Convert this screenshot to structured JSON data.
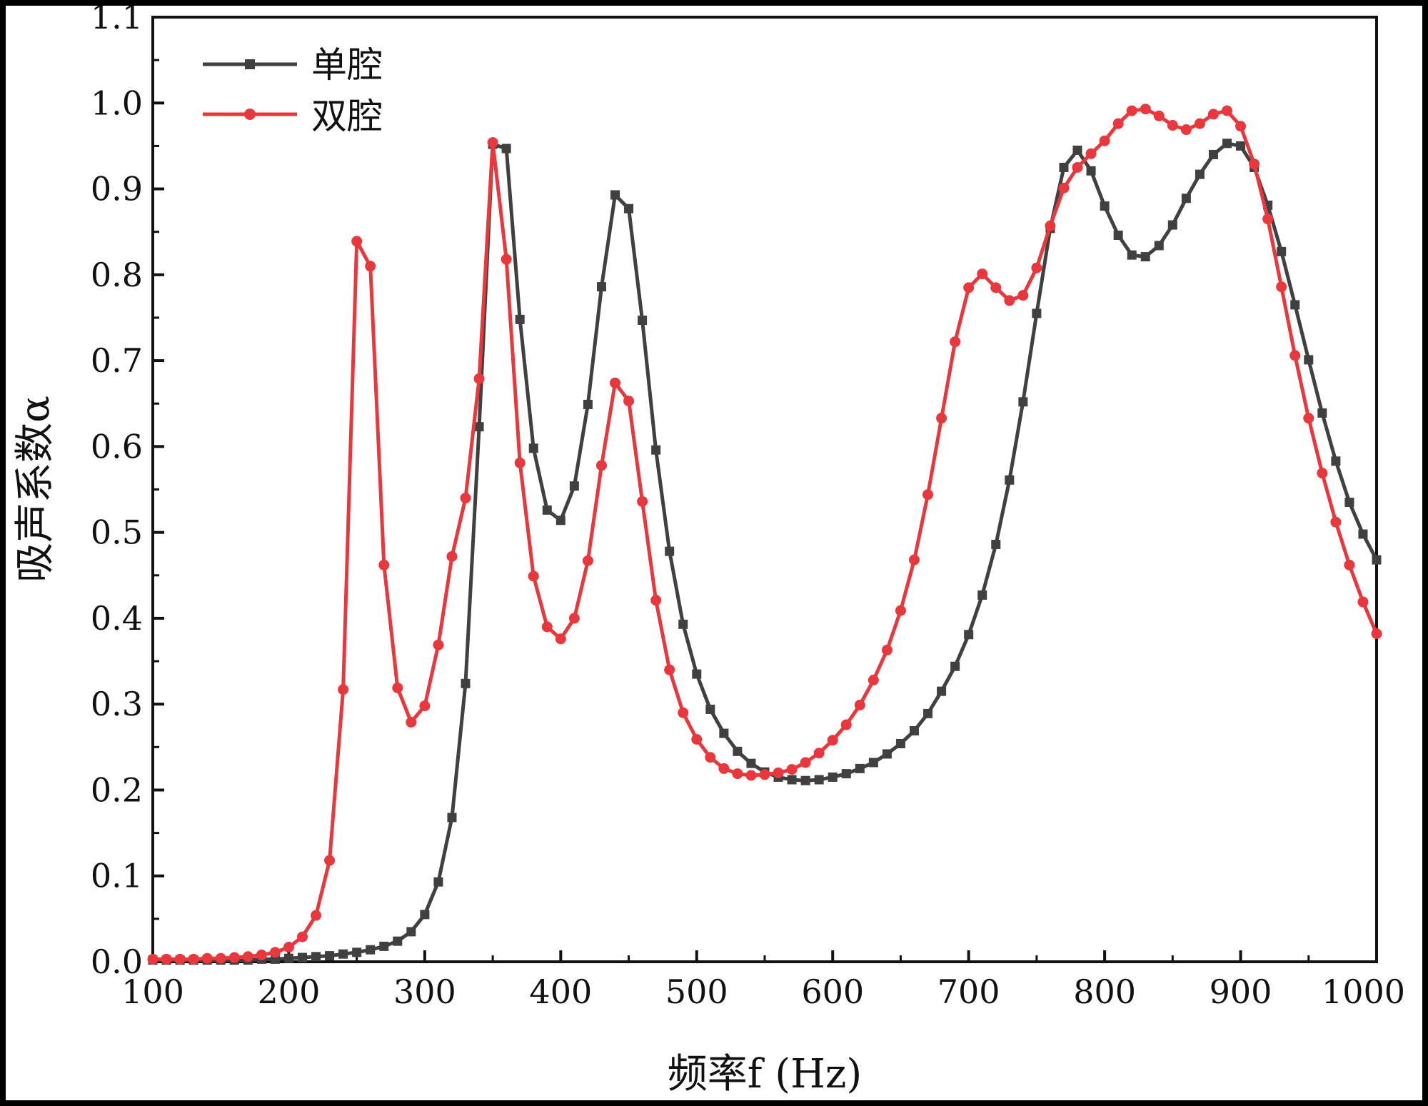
{
  "chart_data": {
    "type": "line",
    "xlabel": "频率f (Hz)",
    "ylabel": "吸声系数α",
    "xlim": [
      100,
      1000
    ],
    "ylim": [
      0.0,
      1.1
    ],
    "x_ticks": [
      "100",
      "200",
      "300",
      "400",
      "500",
      "600",
      "700",
      "800",
      "900",
      "1000"
    ],
    "y_ticks": [
      "0.0",
      "0.1",
      "0.2",
      "0.3",
      "0.4",
      "0.5",
      "0.6",
      "0.7",
      "0.8",
      "0.9",
      "1.0",
      "1.1"
    ],
    "grid": false,
    "legend_position": "top-left",
    "x": [
      100,
      110,
      120,
      130,
      140,
      150,
      160,
      170,
      180,
      190,
      200,
      210,
      220,
      230,
      240,
      250,
      260,
      270,
      280,
      290,
      300,
      310,
      320,
      330,
      340,
      350,
      360,
      370,
      380,
      390,
      400,
      410,
      420,
      430,
      440,
      450,
      460,
      470,
      480,
      490,
      500,
      510,
      520,
      530,
      540,
      550,
      560,
      570,
      580,
      590,
      600,
      610,
      620,
      630,
      640,
      650,
      660,
      670,
      680,
      690,
      700,
      710,
      720,
      730,
      740,
      750,
      760,
      770,
      780,
      790,
      800,
      810,
      820,
      830,
      840,
      850,
      860,
      870,
      880,
      890,
      900,
      910,
      920,
      930,
      940,
      950,
      960,
      970,
      980,
      990,
      1000
    ],
    "series": [
      {
        "name": "单腔",
        "color": "#404040",
        "marker": "square",
        "values": [
          0.002,
          0.002,
          0.002,
          0.002,
          0.002,
          0.002,
          0.002,
          0.002,
          0.003,
          0.003,
          0.004,
          0.005,
          0.006,
          0.007,
          0.009,
          0.011,
          0.014,
          0.018,
          0.024,
          0.035,
          0.055,
          0.093,
          0.168,
          0.324,
          0.623,
          0.952,
          0.947,
          0.748,
          0.598,
          0.526,
          0.514,
          0.554,
          0.649,
          0.786,
          0.893,
          0.877,
          0.747,
          0.596,
          0.478,
          0.393,
          0.335,
          0.294,
          0.266,
          0.245,
          0.231,
          0.221,
          0.215,
          0.212,
          0.211,
          0.212,
          0.215,
          0.219,
          0.225,
          0.232,
          0.242,
          0.254,
          0.269,
          0.289,
          0.315,
          0.344,
          0.381,
          0.427,
          0.486,
          0.561,
          0.652,
          0.755,
          0.854,
          0.925,
          0.945,
          0.921,
          0.88,
          0.846,
          0.823,
          0.821,
          0.834,
          0.858,
          0.889,
          0.917,
          0.94,
          0.953,
          0.95,
          0.925,
          0.881,
          0.827,
          0.765,
          0.701,
          0.639,
          0.583,
          0.535,
          0.498,
          0.468
        ]
      },
      {
        "name": "双腔",
        "color": "#e8383d",
        "marker": "circle",
        "values": [
          0.003,
          0.003,
          0.003,
          0.003,
          0.004,
          0.004,
          0.005,
          0.006,
          0.008,
          0.011,
          0.017,
          0.029,
          0.054,
          0.118,
          0.317,
          0.839,
          0.81,
          0.462,
          0.319,
          0.279,
          0.298,
          0.369,
          0.472,
          0.54,
          0.679,
          0.954,
          0.818,
          0.581,
          0.449,
          0.39,
          0.376,
          0.4,
          0.467,
          0.578,
          0.674,
          0.653,
          0.536,
          0.421,
          0.34,
          0.29,
          0.259,
          0.238,
          0.225,
          0.219,
          0.217,
          0.218,
          0.22,
          0.224,
          0.232,
          0.243,
          0.258,
          0.276,
          0.299,
          0.328,
          0.363,
          0.409,
          0.468,
          0.544,
          0.633,
          0.722,
          0.785,
          0.801,
          0.785,
          0.77,
          0.776,
          0.808,
          0.857,
          0.901,
          0.925,
          0.941,
          0.956,
          0.976,
          0.991,
          0.993,
          0.985,
          0.974,
          0.969,
          0.976,
          0.987,
          0.991,
          0.973,
          0.929,
          0.865,
          0.786,
          0.706,
          0.633,
          0.569,
          0.512,
          0.462,
          0.419,
          0.382
        ]
      }
    ]
  }
}
